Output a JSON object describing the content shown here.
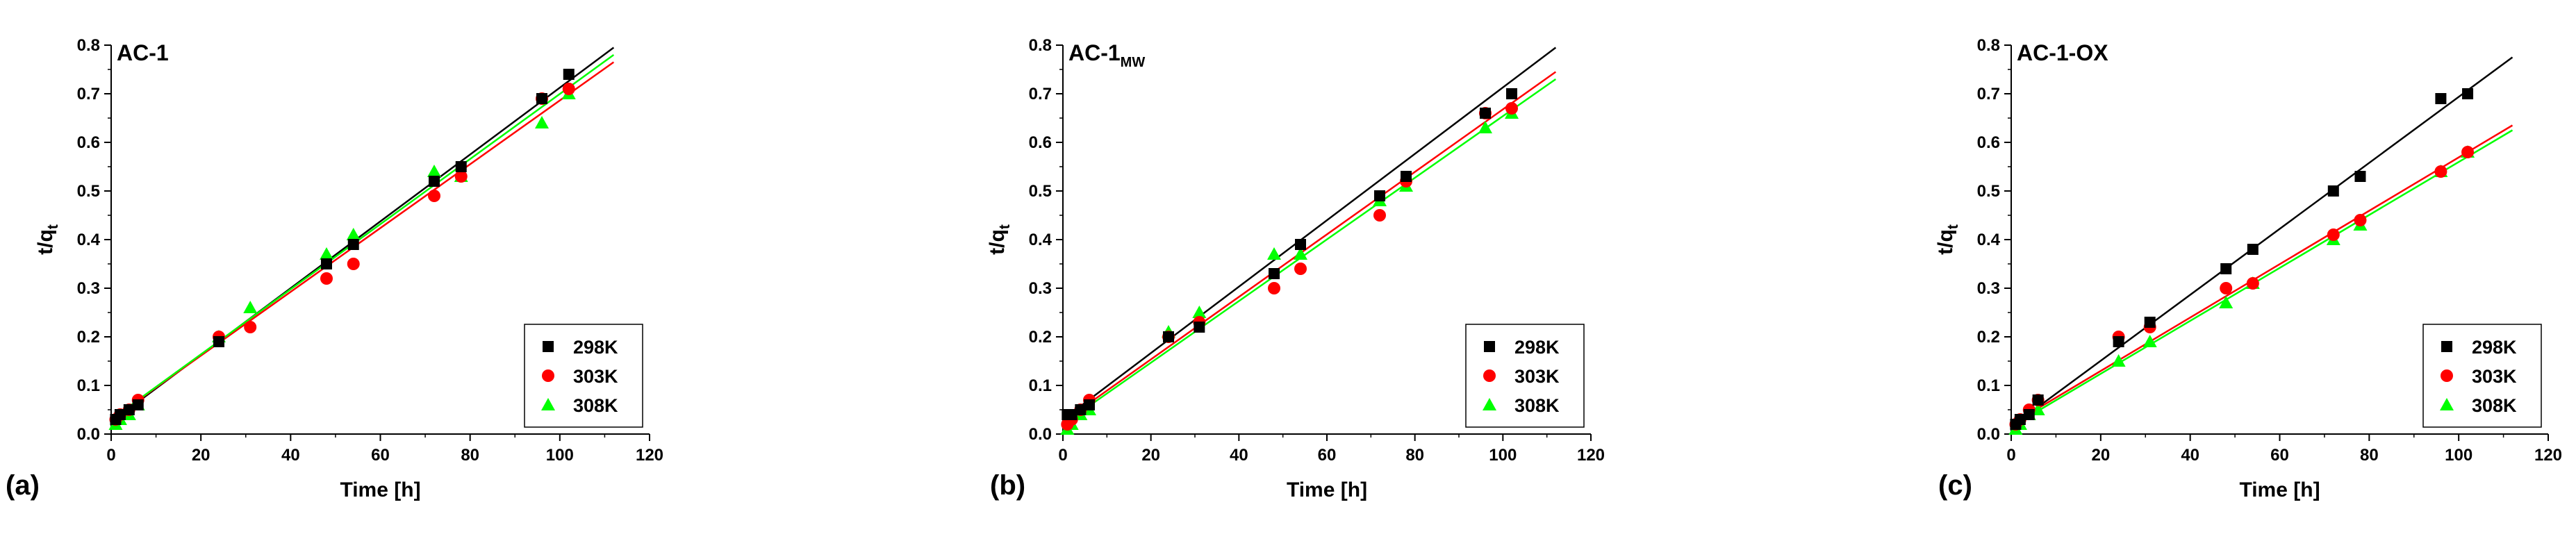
{
  "chart_data": [
    {
      "type": "scatter",
      "panel_label": "(a)",
      "title": "AC-1",
      "title_subscript": "",
      "xlabel": "Time [h]",
      "ylabel_main": "t/q",
      "ylabel_sub": "t",
      "xlim": [
        0,
        120
      ],
      "ylim": [
        0,
        0.8
      ],
      "xticks": [
        "0",
        "20",
        "40",
        "60",
        "80",
        "100",
        "120"
      ],
      "yticks": [
        "0.0",
        "0.1",
        "0.2",
        "0.3",
        "0.4",
        "0.5",
        "0.6",
        "0.7",
        "0.8"
      ],
      "legend_position": "bottom-right",
      "series": [
        {
          "name": "298K",
          "color": "#000000",
          "marker": "square",
          "x": [
            1,
            2,
            4,
            6,
            24,
            48,
            54,
            72,
            78,
            96,
            102
          ],
          "y": [
            0.03,
            0.04,
            0.05,
            0.06,
            0.19,
            0.35,
            0.39,
            0.52,
            0.55,
            0.69,
            0.74
          ],
          "fit": [
            [
              0,
              0.025
            ],
            [
              112,
              0.795
            ]
          ]
        },
        {
          "name": "303K",
          "color": "#ff0000",
          "marker": "circle",
          "x": [
            1,
            2,
            4,
            6,
            24,
            31,
            48,
            54,
            72,
            78,
            96,
            102
          ],
          "y": [
            0.03,
            0.04,
            0.05,
            0.07,
            0.2,
            0.22,
            0.32,
            0.35,
            0.49,
            0.53,
            0.69,
            0.71
          ],
          "fit": [
            [
              0,
              0.03
            ],
            [
              112,
              0.765
            ]
          ]
        },
        {
          "name": "308K",
          "color": "#00ff00",
          "marker": "triangle",
          "x": [
            1,
            2,
            4,
            6,
            24,
            31,
            48,
            54,
            72,
            78,
            96,
            102
          ],
          "y": [
            0.02,
            0.03,
            0.04,
            0.06,
            0.2,
            0.26,
            0.37,
            0.41,
            0.54,
            0.53,
            0.64,
            0.7
          ],
          "fit": [
            [
              0,
              0.03
            ],
            [
              112,
              0.78
            ]
          ]
        }
      ]
    },
    {
      "type": "scatter",
      "panel_label": "(b)",
      "title": "AC-1",
      "title_subscript": "MW",
      "xlabel": "Time [h]",
      "ylabel_main": "t/q",
      "ylabel_sub": "t",
      "xlim": [
        0,
        120
      ],
      "ylim": [
        0,
        0.8
      ],
      "xticks": [
        "0",
        "20",
        "40",
        "60",
        "80",
        "100",
        "120"
      ],
      "yticks": [
        "0.0",
        "0.1",
        "0.2",
        "0.3",
        "0.4",
        "0.5",
        "0.6",
        "0.7",
        "0.8"
      ],
      "legend_position": "bottom-right",
      "series": [
        {
          "name": "298K",
          "color": "#000000",
          "marker": "square",
          "x": [
            1,
            2,
            4,
            6,
            24,
            31,
            48,
            54,
            72,
            78,
            96,
            102
          ],
          "y": [
            0.04,
            0.04,
            0.05,
            0.06,
            0.2,
            0.22,
            0.33,
            0.39,
            0.49,
            0.53,
            0.66,
            0.7
          ],
          "fit": [
            [
              0,
              0.03
            ],
            [
              112,
              0.795
            ]
          ]
        },
        {
          "name": "303K",
          "color": "#ff0000",
          "marker": "circle",
          "x": [
            1,
            2,
            4,
            6,
            24,
            31,
            48,
            54,
            72,
            78,
            96,
            102
          ],
          "y": [
            0.02,
            0.03,
            0.05,
            0.07,
            0.2,
            0.23,
            0.3,
            0.34,
            0.45,
            0.52,
            0.66,
            0.67
          ],
          "fit": [
            [
              0,
              0.025
            ],
            [
              112,
              0.745
            ]
          ]
        },
        {
          "name": "308K",
          "color": "#00ff00",
          "marker": "triangle",
          "x": [
            1,
            2,
            4,
            6,
            24,
            31,
            48,
            54,
            72,
            78,
            96,
            102
          ],
          "y": [
            0.01,
            0.02,
            0.04,
            0.05,
            0.21,
            0.25,
            0.37,
            0.37,
            0.48,
            0.51,
            0.63,
            0.66
          ],
          "fit": [
            [
              0,
              0.02
            ],
            [
              112,
              0.73
            ]
          ]
        }
      ]
    },
    {
      "type": "scatter",
      "panel_label": "(c)",
      "title": "AC-1-OX",
      "title_subscript": "",
      "xlabel": "Time [h]",
      "ylabel_main": "t/q",
      "ylabel_sub": "t",
      "xlim": [
        0,
        120
      ],
      "ylim": [
        0,
        0.8
      ],
      "xticks": [
        "0",
        "20",
        "40",
        "60",
        "80",
        "100",
        "120"
      ],
      "yticks": [
        "0.0",
        "0.1",
        "0.2",
        "0.3",
        "0.4",
        "0.5",
        "0.6",
        "0.7",
        "0.8"
      ],
      "legend_position": "bottom-right",
      "series": [
        {
          "name": "298K",
          "color": "#000000",
          "marker": "square",
          "x": [
            1,
            2,
            4,
            6,
            24,
            31,
            48,
            54,
            72,
            78,
            96,
            102
          ],
          "y": [
            0.02,
            0.03,
            0.04,
            0.07,
            0.19,
            0.23,
            0.34,
            0.38,
            0.5,
            0.53,
            0.69,
            0.7
          ],
          "fit": [
            [
              0,
              0.015
            ],
            [
              112,
              0.775
            ]
          ]
        },
        {
          "name": "303K",
          "color": "#ff0000",
          "marker": "circle",
          "x": [
            1,
            2,
            4,
            6,
            24,
            31,
            48,
            54,
            72,
            78,
            96,
            102
          ],
          "y": [
            0.02,
            0.03,
            0.05,
            0.07,
            0.2,
            0.22,
            0.3,
            0.31,
            0.41,
            0.44,
            0.54,
            0.58
          ],
          "fit": [
            [
              0,
              0.02
            ],
            [
              112,
              0.635
            ]
          ]
        },
        {
          "name": "308K",
          "color": "#00ff00",
          "marker": "triangle",
          "x": [
            1,
            2,
            4,
            6,
            24,
            31,
            48,
            54,
            72,
            78,
            96,
            102
          ],
          "y": [
            0.01,
            0.02,
            0.04,
            0.05,
            0.15,
            0.19,
            0.27,
            0.31,
            0.4,
            0.43,
            0.54,
            0.58
          ],
          "fit": [
            [
              0,
              0.015
            ],
            [
              112,
              0.625
            ]
          ]
        }
      ]
    }
  ]
}
